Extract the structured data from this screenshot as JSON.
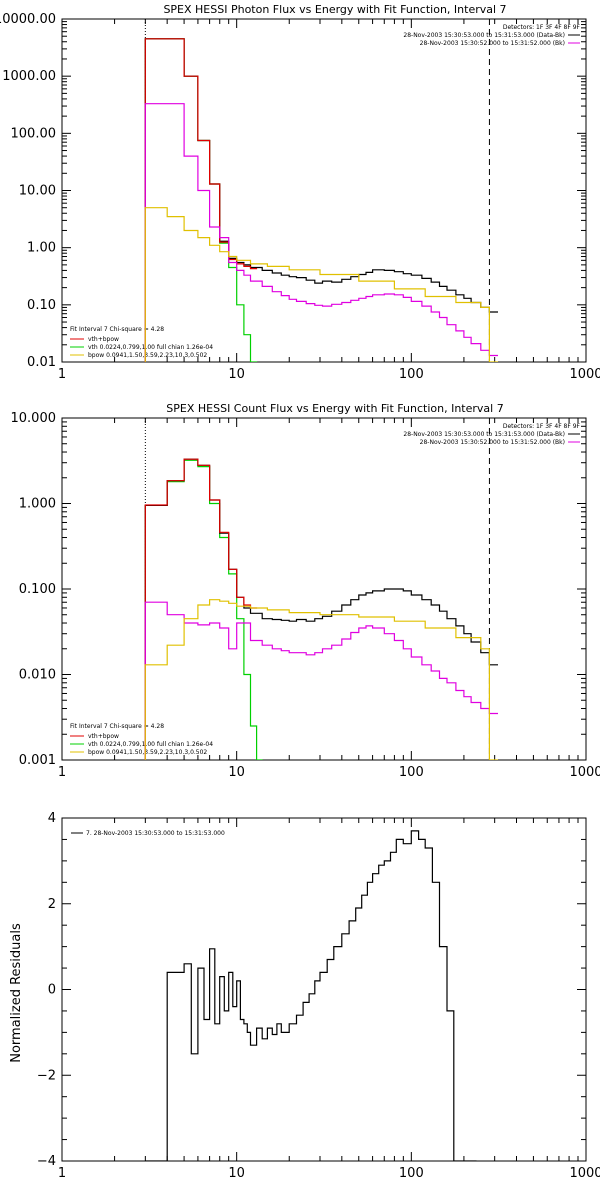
{
  "colors": {
    "data": "#000000",
    "total": "#e00000",
    "vth": "#00d000",
    "vth_plus_bpow": "#e000e0",
    "bpow": "#e0c000",
    "background": "#ffffff"
  },
  "chart_data": [
    {
      "type": "line",
      "step": true,
      "title": "SPEX HESSI Photon Flux vs Energy with Fit Function, Interval 7",
      "xscale": "log",
      "yscale": "log",
      "xlim": [
        1,
        1000
      ],
      "ylim": [
        0.01,
        10000
      ],
      "xticks": [
        1,
        10,
        100,
        1000
      ],
      "xtick_labels": [
        "1",
        "10",
        "100",
        "1000"
      ],
      "yticks": [
        0.01,
        0.1,
        1,
        10,
        100,
        1000,
        10000
      ],
      "ytick_labels": [
        "0.01",
        "0.10",
        "1.00",
        "10.00",
        "100.00",
        "1000.00",
        "10000.00"
      ],
      "vlines": [
        {
          "x": 3,
          "style": "dotted"
        },
        {
          "x": 280,
          "style": "dashed"
        }
      ],
      "header_lines": [
        "Detectors: 1F 3F 4F 8F 9F",
        "28-Nov-2003 15:30:53.000 to 15:31:53.000 (Data-Bk)",
        "28-Nov-2003 15:30:52.000 to 15:31:52.000 (Bk)"
      ],
      "legend_header": "Fit Interval 7   Chi-square = 4.28",
      "legend_items": [
        {
          "label": "vth+bpow",
          "color_key": "total"
        },
        {
          "label": "vth 0.0224,0.799,1.00  full chian 1.26e-04",
          "color_key": "vth"
        },
        {
          "label": "bpow 0.0941,1.50,3.59,2.23,10.3,0.502",
          "color_key": "bpow"
        }
      ],
      "series": [
        {
          "color_key": "vth",
          "x": [
            3.0,
            4.0,
            5.0,
            6.0,
            7.0,
            8.0,
            9.0,
            10.0,
            11.0,
            12.0
          ],
          "y": [
            4500,
            4500,
            1000,
            75,
            13,
            1.2,
            0.45,
            0.1,
            0.03,
            0.01
          ]
        },
        {
          "color_key": "data",
          "x": [
            3.0,
            4.0,
            5.0,
            6.0,
            7.0,
            8.0,
            9.0,
            10.0,
            11.0,
            12.0,
            14.0,
            16.0,
            18.0,
            20.0,
            22.0,
            25.0,
            28.0,
            31.0,
            35.0,
            40.0,
            45.0,
            50.0,
            55.0,
            60.0,
            70.0,
            80.0,
            90.0,
            100.0,
            115.0,
            130.0,
            145.0,
            160.0,
            180.0,
            200.0,
            220.0,
            250.0,
            280.0
          ],
          "y": [
            4500,
            4500,
            1000,
            75,
            13,
            1.3,
            0.65,
            0.55,
            0.5,
            0.45,
            0.4,
            0.36,
            0.33,
            0.31,
            0.3,
            0.27,
            0.24,
            0.26,
            0.25,
            0.28,
            0.31,
            0.34,
            0.37,
            0.41,
            0.4,
            0.38,
            0.35,
            0.33,
            0.29,
            0.25,
            0.21,
            0.18,
            0.15,
            0.13,
            0.11,
            0.09,
            0.075
          ]
        },
        {
          "color_key": "total",
          "x": [
            3.0,
            4.0,
            5.0,
            6.0,
            7.0,
            8.0,
            9.0,
            10.0,
            11.0,
            12.0
          ],
          "y": [
            4500,
            4500,
            1000,
            75,
            13,
            1.25,
            0.62,
            0.52,
            0.47,
            0.43
          ]
        },
        {
          "color_key": "vth_plus_bpow",
          "x": [
            3.0,
            4.0,
            5.0,
            6.0,
            7.0,
            8.0,
            9.0,
            10.0,
            11.0,
            12.0,
            14.0,
            16.0,
            18.0,
            20.0,
            22.0,
            25.0,
            28.0,
            31.0,
            35.0,
            40.0,
            45.0,
            50.0,
            55.0,
            60.0,
            70.0,
            80.0,
            90.0,
            100.0,
            115.0,
            130.0,
            145.0,
            160.0,
            180.0,
            200.0,
            220.0,
            250.0,
            280.0
          ],
          "y": [
            330,
            330,
            40,
            10,
            2.3,
            1.5,
            0.55,
            0.4,
            0.33,
            0.26,
            0.21,
            0.17,
            0.145,
            0.125,
            0.115,
            0.105,
            0.098,
            0.095,
            0.102,
            0.11,
            0.12,
            0.13,
            0.14,
            0.15,
            0.155,
            0.15,
            0.135,
            0.115,
            0.095,
            0.075,
            0.06,
            0.045,
            0.035,
            0.027,
            0.021,
            0.016,
            0.013
          ]
        },
        {
          "color_key": "bpow",
          "x": [
            3.0,
            4.0,
            5.0,
            6.0,
            7.0,
            8.0,
            9.0,
            10.0,
            12.0,
            15.0,
            20.0,
            30.0,
            50.0,
            80.0,
            120.0,
            180.0,
            250.0,
            280.0
          ],
          "y": [
            5.0,
            3.5,
            2.0,
            1.5,
            1.1,
            0.85,
            0.7,
            0.6,
            0.52,
            0.47,
            0.41,
            0.34,
            0.26,
            0.19,
            0.14,
            0.11,
            0.09,
            0.01
          ]
        }
      ]
    },
    {
      "type": "line",
      "step": true,
      "title": "SPEX HESSI Count Flux vs Energy with Fit Function, Interval 7",
      "xscale": "log",
      "yscale": "log",
      "xlim": [
        1,
        1000
      ],
      "ylim": [
        0.001,
        10
      ],
      "xticks": [
        1,
        10,
        100,
        1000
      ],
      "xtick_labels": [
        "1",
        "10",
        "100",
        "1000"
      ],
      "yticks": [
        0.001,
        0.01,
        0.1,
        1,
        10
      ],
      "ytick_labels": [
        "0.001",
        "0.010",
        "0.100",
        "1.000",
        "10.000"
      ],
      "vlines": [
        {
          "x": 3,
          "style": "dotted"
        },
        {
          "x": 280,
          "style": "dashed"
        }
      ],
      "header_lines": [
        "Detectors: 1F 3F 4F 8F 9F",
        "28-Nov-2003 15:30:53.000 to 15:31:53.000 (Data-Bk)",
        "28-Nov-2003 15:30:52.000 to 15:31:52.000 (Bk)"
      ],
      "legend_header": "Fit Interval 7   Chi-square = 4.28",
      "legend_items": [
        {
          "label": "vth+bpow",
          "color_key": "total"
        },
        {
          "label": "vth 0.0224,0.799,1.00  full chian 1.26e-04",
          "color_key": "vth"
        },
        {
          "label": "bpow 0.0941,1.50,3.59,2.23,10.3,0.502",
          "color_key": "bpow"
        }
      ],
      "series": [
        {
          "color_key": "vth",
          "x": [
            3.0,
            4.0,
            5.0,
            6.0,
            7.0,
            8.0,
            9.0,
            10.0,
            11.0,
            12.0,
            13.0
          ],
          "y": [
            0.95,
            1.8,
            3.2,
            2.7,
            1.0,
            0.4,
            0.15,
            0.045,
            0.01,
            0.0025,
            0.001
          ]
        },
        {
          "color_key": "data",
          "x": [
            3.0,
            4.0,
            5.0,
            6.0,
            7.0,
            8.0,
            9.0,
            10.0,
            11.0,
            12.0,
            14.0,
            16.0,
            18.0,
            20.0,
            22.0,
            25.0,
            28.0,
            31.0,
            35.0,
            40.0,
            45.0,
            50.0,
            55.0,
            60.0,
            70.0,
            80.0,
            90.0,
            100.0,
            115.0,
            130.0,
            145.0,
            160.0,
            180.0,
            200.0,
            220.0,
            250.0,
            280.0
          ],
          "y": [
            0.95,
            1.85,
            3.3,
            2.8,
            1.1,
            0.45,
            0.17,
            0.08,
            0.06,
            0.052,
            0.045,
            0.044,
            0.043,
            0.042,
            0.044,
            0.042,
            0.045,
            0.048,
            0.055,
            0.065,
            0.075,
            0.085,
            0.09,
            0.095,
            0.1,
            0.1,
            0.095,
            0.085,
            0.075,
            0.065,
            0.055,
            0.045,
            0.037,
            0.03,
            0.024,
            0.018,
            0.013
          ]
        },
        {
          "color_key": "total",
          "x": [
            3.0,
            4.0,
            5.0,
            6.0,
            7.0,
            8.0,
            9.0,
            10.0,
            11.0,
            12.0
          ],
          "y": [
            0.96,
            1.85,
            3.3,
            2.8,
            1.1,
            0.46,
            0.17,
            0.08,
            0.065,
            0.06
          ]
        },
        {
          "color_key": "vth_plus_bpow",
          "x": [
            3.0,
            4.0,
            5.0,
            6.0,
            7.0,
            8.0,
            9.0,
            10.0,
            12.0,
            14.0,
            16.0,
            18.0,
            20.0,
            22.0,
            25.0,
            28.0,
            31.0,
            35.0,
            40.0,
            45.0,
            50.0,
            55.0,
            60.0,
            70.0,
            80.0,
            90.0,
            100.0,
            115.0,
            130.0,
            145.0,
            160.0,
            180.0,
            200.0,
            220.0,
            250.0,
            280.0
          ],
          "y": [
            0.07,
            0.05,
            0.04,
            0.038,
            0.04,
            0.035,
            0.02,
            0.04,
            0.025,
            0.022,
            0.02,
            0.019,
            0.018,
            0.018,
            0.017,
            0.018,
            0.02,
            0.022,
            0.026,
            0.031,
            0.035,
            0.037,
            0.035,
            0.03,
            0.025,
            0.02,
            0.016,
            0.013,
            0.011,
            0.009,
            0.008,
            0.0065,
            0.0055,
            0.0047,
            0.004,
            0.0035
          ]
        },
        {
          "color_key": "bpow",
          "x": [
            3.0,
            4.0,
            5.0,
            6.0,
            7.0,
            8.0,
            9.0,
            10.0,
            12.0,
            15.0,
            20.0,
            30.0,
            50.0,
            80.0,
            120.0,
            180.0,
            250.0,
            280.0
          ],
          "y": [
            0.013,
            0.022,
            0.045,
            0.065,
            0.075,
            0.072,
            0.068,
            0.063,
            0.06,
            0.057,
            0.053,
            0.05,
            0.047,
            0.042,
            0.035,
            0.027,
            0.02,
            0.001
          ]
        }
      ]
    },
    {
      "type": "line",
      "step": true,
      "title": "",
      "xscale": "log",
      "yscale": "linear",
      "xlim": [
        1,
        1000
      ],
      "ylim": [
        -4,
        4
      ],
      "xticks": [
        1,
        10,
        100,
        1000
      ],
      "xtick_labels": [
        "1",
        "10",
        "100",
        "1000"
      ],
      "yticks": [
        -4,
        -2,
        0,
        2,
        4
      ],
      "ytick_labels": [
        "−4",
        "−2",
        "0",
        "2",
        "4"
      ],
      "ylabel": "Normalized Residuals",
      "legend_items": [
        {
          "label": "7. 28-Nov-2003 15:30:53.000 to 15:31:53.000",
          "color_key": "data"
        }
      ],
      "series": [
        {
          "color_key": "data",
          "x": [
            3.0,
            4.0,
            5.0,
            5.5,
            6.0,
            6.5,
            7.0,
            7.5,
            8.0,
            8.5,
            9.0,
            9.5,
            10.0,
            10.5,
            11.0,
            11.5,
            12.0,
            13.0,
            14.0,
            15.0,
            16.0,
            17.0,
            18.0,
            20.0,
            22.0,
            24.0,
            26.0,
            28.0,
            30.0,
            33.0,
            36.0,
            40.0,
            44.0,
            48.0,
            52.0,
            56.0,
            60.0,
            65.0,
            70.0,
            76.0,
            82.0,
            90.0,
            100.0,
            110.0,
            120.0,
            132.0,
            145.0,
            160.0,
            175.0,
            190.0,
            205.0,
            220.0
          ],
          "y": [
            -4.0,
            0.4,
            0.6,
            -1.5,
            0.5,
            -0.7,
            0.95,
            -0.8,
            0.3,
            -0.5,
            0.4,
            -0.4,
            0.2,
            -0.7,
            -0.8,
            -1.0,
            -1.3,
            -0.9,
            -1.15,
            -0.9,
            -1.05,
            -0.8,
            -1.0,
            -0.8,
            -0.6,
            -0.3,
            -0.1,
            0.2,
            0.4,
            0.7,
            1.0,
            1.3,
            1.6,
            1.9,
            2.2,
            2.5,
            2.7,
            2.9,
            3.0,
            3.2,
            3.5,
            3.4,
            3.7,
            3.5,
            3.3,
            2.5,
            1.0,
            -0.5,
            -4.0,
            -4.0,
            -4.0,
            -4.0
          ]
        }
      ]
    }
  ]
}
